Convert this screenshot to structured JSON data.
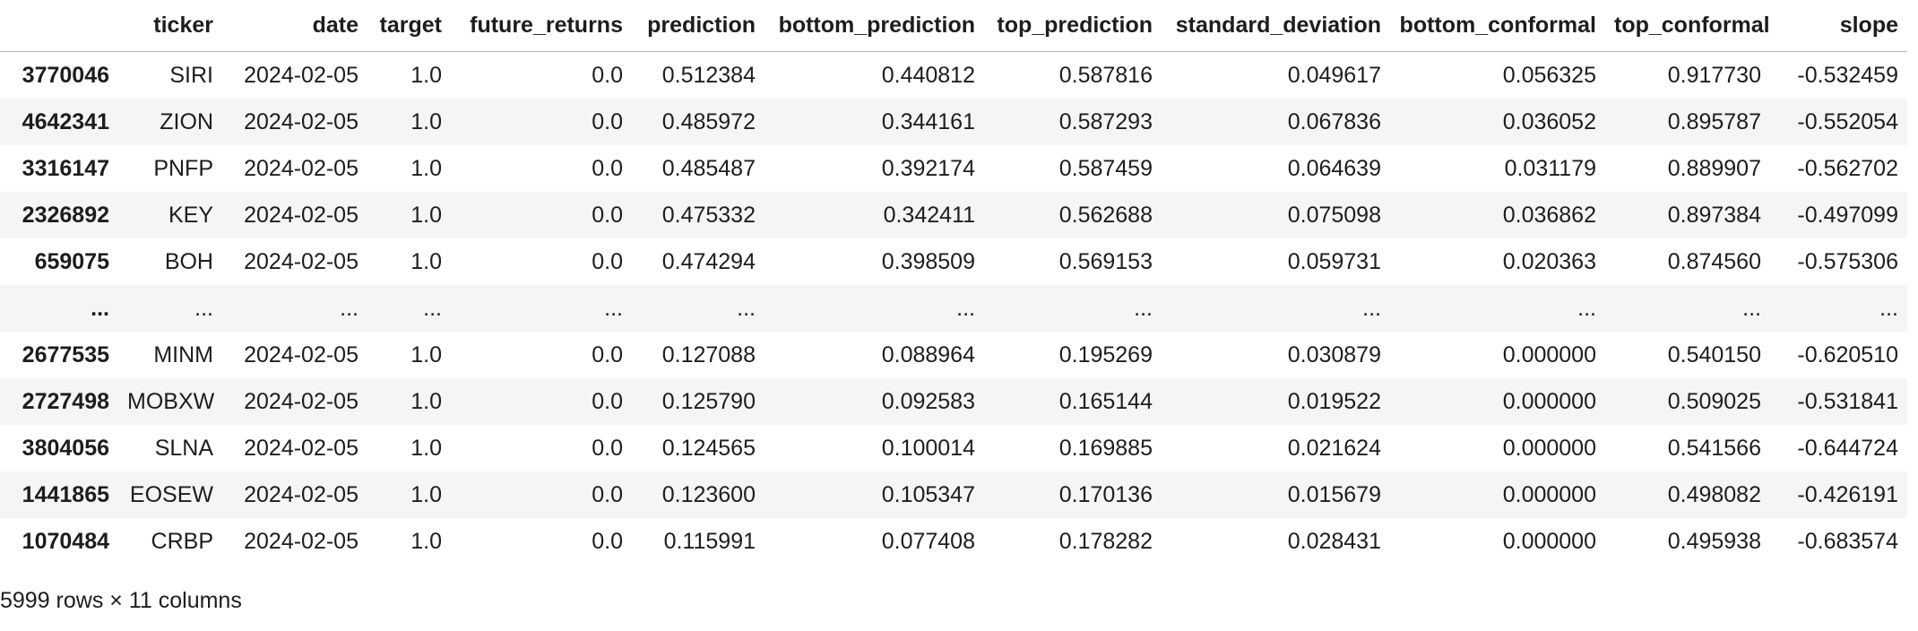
{
  "table": {
    "index_header": "",
    "columns": [
      "ticker",
      "date",
      "target",
      "future_returns",
      "prediction",
      "bottom_prediction",
      "top_prediction",
      "standard_deviation",
      "bottom_conformal",
      "top_conformal",
      "slope"
    ],
    "rows": [
      {
        "index": "3770046",
        "values": [
          "SIRI",
          "2024-02-05",
          "1.0",
          "0.0",
          "0.512384",
          "0.440812",
          "0.587816",
          "0.049617",
          "0.056325",
          "0.917730",
          "-0.532459"
        ]
      },
      {
        "index": "4642341",
        "values": [
          "ZION",
          "2024-02-05",
          "1.0",
          "0.0",
          "0.485972",
          "0.344161",
          "0.587293",
          "0.067836",
          "0.036052",
          "0.895787",
          "-0.552054"
        ]
      },
      {
        "index": "3316147",
        "values": [
          "PNFP",
          "2024-02-05",
          "1.0",
          "0.0",
          "0.485487",
          "0.392174",
          "0.587459",
          "0.064639",
          "0.031179",
          "0.889907",
          "-0.562702"
        ]
      },
      {
        "index": "2326892",
        "values": [
          "KEY",
          "2024-02-05",
          "1.0",
          "0.0",
          "0.475332",
          "0.342411",
          "0.562688",
          "0.075098",
          "0.036862",
          "0.897384",
          "-0.497099"
        ]
      },
      {
        "index": "659075",
        "values": [
          "BOH",
          "2024-02-05",
          "1.0",
          "0.0",
          "0.474294",
          "0.398509",
          "0.569153",
          "0.059731",
          "0.020363",
          "0.874560",
          "-0.575306"
        ]
      },
      {
        "index": "...",
        "values": [
          "...",
          "...",
          "...",
          "...",
          "...",
          "...",
          "...",
          "...",
          "...",
          "...",
          "..."
        ]
      },
      {
        "index": "2677535",
        "values": [
          "MINM",
          "2024-02-05",
          "1.0",
          "0.0",
          "0.127088",
          "0.088964",
          "0.195269",
          "0.030879",
          "0.000000",
          "0.540150",
          "-0.620510"
        ]
      },
      {
        "index": "2727498",
        "values": [
          "MOBXW",
          "2024-02-05",
          "1.0",
          "0.0",
          "0.125790",
          "0.092583",
          "0.165144",
          "0.019522",
          "0.000000",
          "0.509025",
          "-0.531841"
        ]
      },
      {
        "index": "3804056",
        "values": [
          "SLNA",
          "2024-02-05",
          "1.0",
          "0.0",
          "0.124565",
          "0.100014",
          "0.169885",
          "0.021624",
          "0.000000",
          "0.541566",
          "-0.644724"
        ]
      },
      {
        "index": "1441865",
        "values": [
          "EOSEW",
          "2024-02-05",
          "1.0",
          "0.0",
          "0.123600",
          "0.105347",
          "0.170136",
          "0.015679",
          "0.000000",
          "0.498082",
          "-0.426191"
        ]
      },
      {
        "index": "1070484",
        "values": [
          "CRBP",
          "2024-02-05",
          "1.0",
          "0.0",
          "0.115991",
          "0.077408",
          "0.178282",
          "0.028431",
          "0.000000",
          "0.495938",
          "-0.683574"
        ]
      }
    ],
    "footer": "5999 rows × 11 columns"
  },
  "colors": {
    "background": "#ffffff",
    "text": "#1d1d1f",
    "row_stripe": "#f5f5f5",
    "header_rule": "#b9b9b9"
  }
}
